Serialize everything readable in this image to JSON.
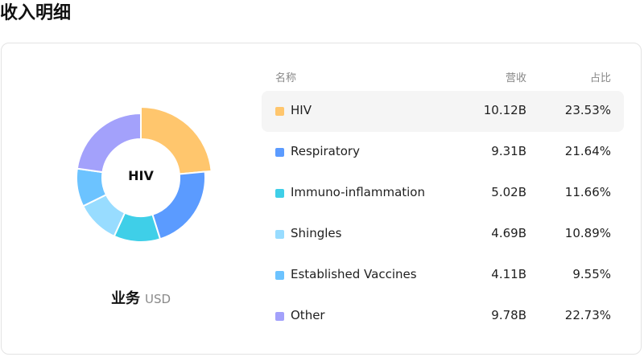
{
  "page_title": "收入明细",
  "donut": {
    "center_label": "HIV"
  },
  "subtitle": {
    "main": "业务",
    "unit": "USD"
  },
  "table": {
    "headers": {
      "name": "名称",
      "revenue": "营收",
      "ratio": "占比"
    },
    "selected_index": 0
  },
  "chart_data": {
    "type": "pie",
    "style": "donut",
    "title": "",
    "categories": [
      "HIV",
      "Respiratory",
      "Immuno-inflammation",
      "Shingles",
      "Established Vaccines",
      "Other"
    ],
    "values_display": [
      "10.12B",
      "9.31B",
      "5.02B",
      "4.69B",
      "4.11B",
      "9.78B"
    ],
    "values": [
      10.12,
      9.31,
      5.02,
      4.69,
      4.11,
      9.78
    ],
    "ratios_display": [
      "23.53%",
      "21.64%",
      "11.66%",
      "10.89%",
      "9.55%",
      "22.73%"
    ],
    "ratios": [
      23.53,
      21.64,
      11.66,
      10.89,
      9.55,
      22.73
    ],
    "colors": [
      "#ffc66d",
      "#5b9bff",
      "#3fcfe8",
      "#98dcff",
      "#6cc3ff",
      "#a3a1fb"
    ],
    "highlighted": "HIV"
  }
}
